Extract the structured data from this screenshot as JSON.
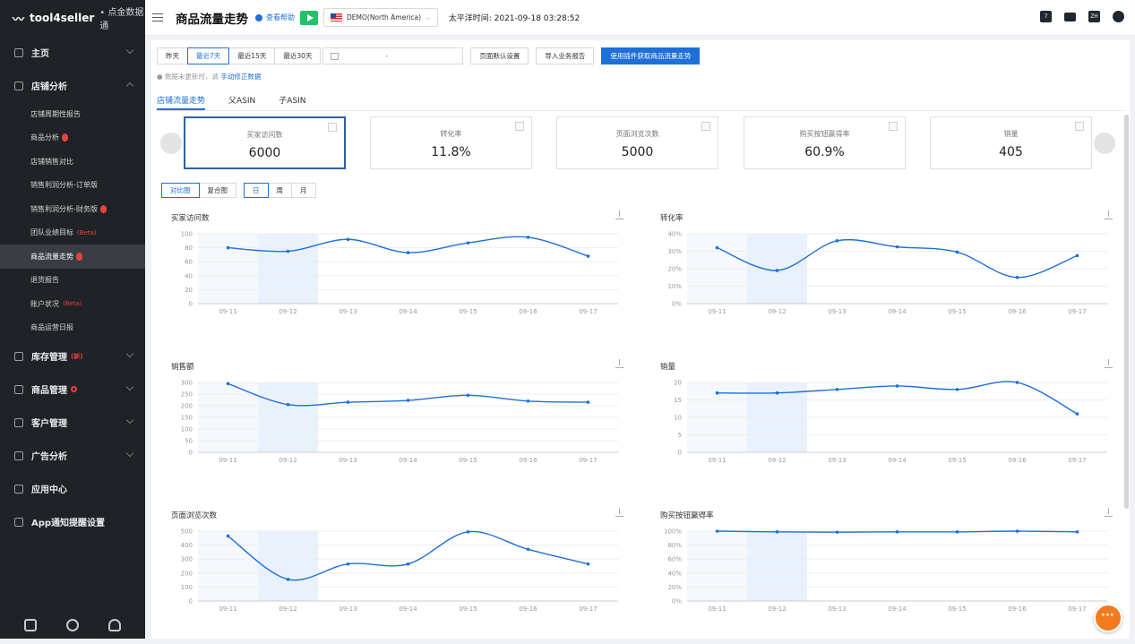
{
  "brand": {
    "name": "tool4seller",
    "suffix": "• 点金数据通"
  },
  "sidebar": {
    "items": [
      {
        "label": "主页",
        "type": "top",
        "chevron": "down"
      },
      {
        "label": "店铺分析",
        "type": "top",
        "chevron": "up"
      },
      {
        "label": "店铺周期性报告",
        "type": "sub"
      },
      {
        "label": "商品分析",
        "type": "sub",
        "fire": true
      },
      {
        "label": "店铺销售对比",
        "type": "sub"
      },
      {
        "label": "销售利润分析-订单版",
        "type": "sub"
      },
      {
        "label": "销售利润分析-财务版",
        "type": "sub",
        "fire": true
      },
      {
        "label": "团队业绩目标",
        "type": "sub",
        "beta": "(Beta)"
      },
      {
        "label": "商品流量走势",
        "type": "sub",
        "fire": true,
        "active": true
      },
      {
        "label": "退货报告",
        "type": "sub"
      },
      {
        "label": "账户状况",
        "type": "sub",
        "beta": "(Beta)"
      },
      {
        "label": "商品运营日报",
        "type": "sub"
      },
      {
        "label": "库存管理",
        "type": "top",
        "beta": "(新)",
        "chevron": "down"
      },
      {
        "label": "商品管理",
        "type": "top",
        "reddot": true,
        "chevron": "down"
      },
      {
        "label": "客户管理",
        "type": "top",
        "chevron": "down"
      },
      {
        "label": "广告分析",
        "type": "top",
        "chevron": "down"
      },
      {
        "label": "应用中心",
        "type": "top"
      },
      {
        "label": "App通知提醒设置",
        "type": "top"
      }
    ]
  },
  "header": {
    "title": "商品流量走势",
    "help": "查看帮助",
    "store": "DEMO(North America)",
    "time": "太平洋时间: 2021-09-18 03:28:52",
    "lang": "ZH",
    "calendar_day": "7"
  },
  "toolbar": {
    "ranges": [
      "昨天",
      "最近7天",
      "最近15天",
      "最近30天"
    ],
    "active_range": 1,
    "date_sep": "-",
    "buttons": [
      "页面默认设置",
      "导入业务报告",
      "使用插件获取商品流量走势"
    ]
  },
  "notice": {
    "text": "数据未更新时，请",
    "link": "手动修正数据"
  },
  "tabs": [
    "店铺流量走势",
    "父ASIN",
    "子ASIN"
  ],
  "kpis": [
    {
      "label": "买家访问数",
      "value": "6000",
      "selected": true
    },
    {
      "label": "转化率",
      "value": "11.8%"
    },
    {
      "label": "页面浏览次数",
      "value": "5000"
    },
    {
      "label": "购买按钮赢得率",
      "value": "60.9%"
    },
    {
      "label": "销量",
      "value": "405"
    }
  ],
  "modes": {
    "views": [
      "对比图",
      "复合图"
    ],
    "periods": [
      "日",
      "周",
      "月"
    ]
  },
  "accent_color": "#1e6fd9",
  "chart_data": [
    {
      "type": "line",
      "title": "买家访问数",
      "categories": [
        "09-11",
        "09-12",
        "09-13",
        "09-14",
        "09-15",
        "09-16",
        "09-17"
      ],
      "values": [
        80,
        75,
        92,
        73,
        87,
        95,
        68
      ],
      "ylim": [
        0,
        100
      ],
      "yticks": [
        "0",
        "20",
        "40",
        "60",
        "80",
        "100"
      ]
    },
    {
      "type": "line",
      "title": "转化率",
      "categories": [
        "09-11",
        "09-12",
        "09-13",
        "09-14",
        "09-15",
        "09-16",
        "09-17"
      ],
      "values": [
        32,
        19,
        36,
        32.5,
        29.5,
        15,
        27.5
      ],
      "ylim": [
        0,
        40
      ],
      "yticks": [
        "0%",
        "10%",
        "20%",
        "30%",
        "40%"
      ]
    },
    {
      "type": "line",
      "title": "销售额",
      "categories": [
        "09-11",
        "09-12",
        "09-13",
        "09-14",
        "09-15",
        "09-16",
        "09-17"
      ],
      "values": [
        295,
        205,
        215,
        223,
        245,
        220,
        215
      ],
      "ylim": [
        0,
        300
      ],
      "yticks": [
        "0",
        "50",
        "100",
        "150",
        "200",
        "250",
        "300"
      ]
    },
    {
      "type": "line",
      "title": "销量",
      "categories": [
        "09-11",
        "09-12",
        "09-13",
        "09-14",
        "09-15",
        "09-16",
        "09-17"
      ],
      "values": [
        17,
        17,
        18,
        19,
        18,
        20,
        11
      ],
      "ylim": [
        0,
        20
      ],
      "yticks": [
        "0",
        "5",
        "10",
        "15",
        "20"
      ]
    },
    {
      "type": "line",
      "title": "页面浏览次数",
      "categories": [
        "09-11",
        "09-12",
        "09-13",
        "09-14",
        "09-15",
        "09-16",
        "09-17"
      ],
      "values": [
        465,
        155,
        265,
        265,
        495,
        370,
        265
      ],
      "ylim": [
        0,
        500
      ],
      "yticks": [
        "0",
        "100",
        "200",
        "300",
        "400",
        "500"
      ]
    },
    {
      "type": "line",
      "title": "购买按钮赢得率",
      "categories": [
        "09-11",
        "09-12",
        "09-13",
        "09-14",
        "09-15",
        "09-16",
        "09-17"
      ],
      "values": [
        100,
        99,
        98.5,
        99,
        99,
        100,
        99
      ],
      "ylim": [
        0,
        100
      ],
      "yticks": [
        "0%",
        "20%",
        "40%",
        "60%",
        "80%",
        "100%"
      ]
    }
  ]
}
